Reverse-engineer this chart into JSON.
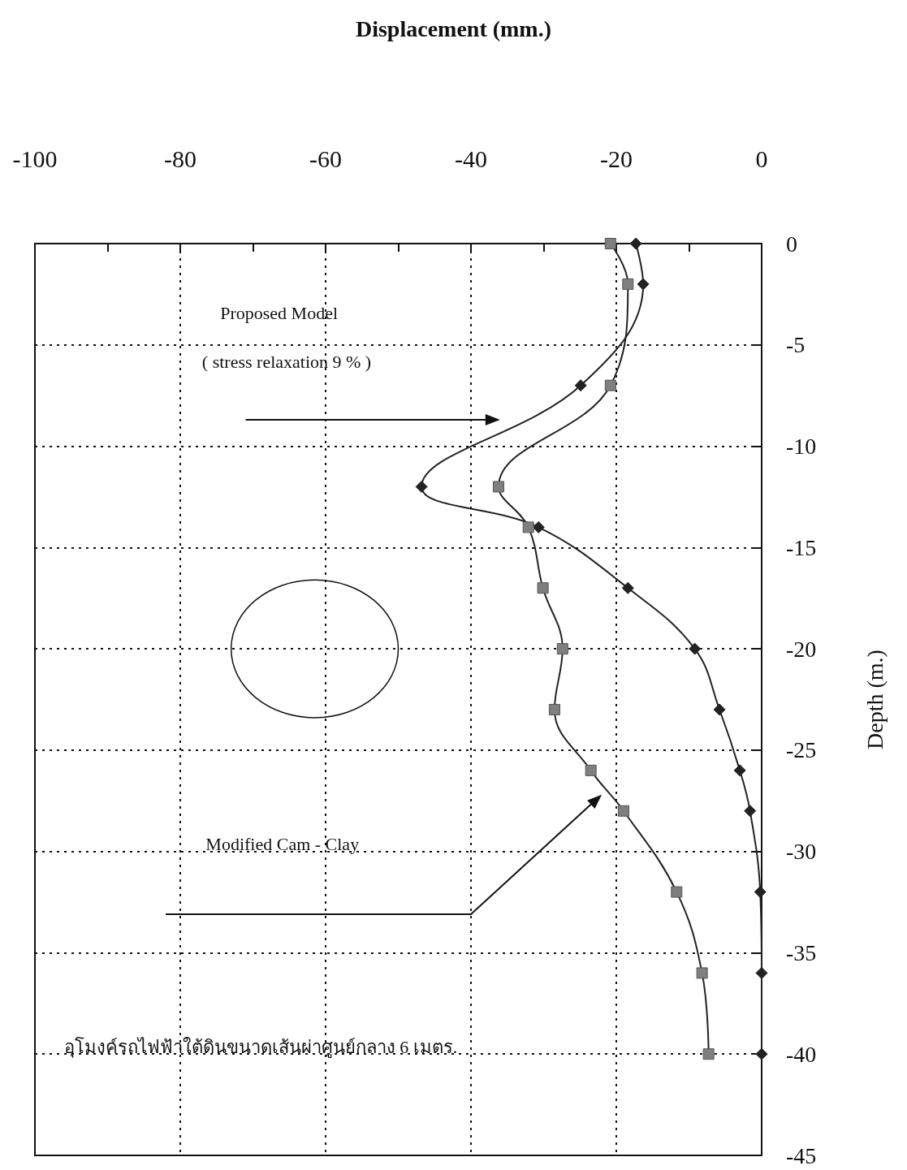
{
  "chart_data": {
    "type": "line",
    "title": "Displacement (mm.)",
    "ylabel": "Depth (m.)",
    "xlim": [
      -100,
      0
    ],
    "xticks": [
      -100,
      -80,
      -60,
      -40,
      -20,
      0
    ],
    "ylim": [
      -45,
      0
    ],
    "yticks": [
      -45,
      -40,
      -35,
      -30,
      -25,
      -20,
      -15,
      -10,
      -5,
      0
    ],
    "grid": true,
    "line_style": "solid",
    "series": [
      {
        "color": "#222222",
        "marker": "diamond",
        "x": [
          -17.3,
          -16.3,
          -24.9,
          -46.8,
          -30.7,
          -18.4,
          -9.2,
          -5.8,
          -3.0,
          -1.6,
          -0.2,
          0,
          0
        ],
        "values": [
          0,
          -2,
          -7,
          -12,
          -14,
          -17,
          -20,
          -23,
          -26,
          -28,
          -32,
          -36,
          -40
        ]
      },
      {
        "color": "#7f7f7f",
        "marker": "square",
        "x": [
          -20.8,
          -18.4,
          -20.8,
          -36.2,
          -32.1,
          -30.1,
          -27.4,
          -28.5,
          -23.5,
          -19.0,
          -11.7,
          -8.2,
          -7.3
        ],
        "values": [
          0,
          -2,
          -7,
          -12,
          -14,
          -17,
          -20,
          -23,
          -26,
          -28,
          -32,
          -36,
          -40
        ]
      }
    ],
    "annotations": [
      "Proposed Model",
      "( stress relaxation 9 % )",
      "Modified Cam - Clay",
      "อุโมงค์รถไฟฟ้าใต้ดินขนาดเส้นผ่าศูนย์กลาง 6 เมตร."
    ]
  }
}
